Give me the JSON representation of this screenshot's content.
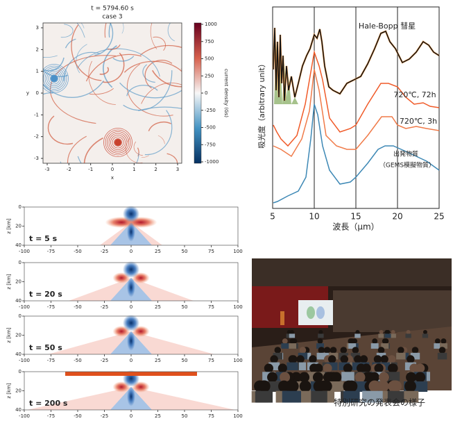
{
  "mhd": {
    "title": "t = 5794.60 s",
    "subtitle": "case 3",
    "xlabel": "x",
    "ylabel": "y",
    "xticks": [
      "-3",
      "-2",
      "-1",
      "0",
      "1",
      "2",
      "3"
    ],
    "yticks": [
      "3",
      "2",
      "1",
      "0",
      "-1",
      "-2",
      "-3"
    ],
    "colorbar_label": "current density (Gs)",
    "colorbar_ticks": [
      "1000",
      "750",
      "500",
      "250",
      "0",
      "-250",
      "-500",
      "-750",
      "-1000"
    ]
  },
  "spectra": {
    "ylabel": "吸光度（arbitrary unit）",
    "xlabel": "波長（μm）",
    "xticks": [
      "5",
      "10",
      "15",
      "20",
      "25"
    ],
    "labels": [
      "Hale-Bopp 彗星",
      "720℃, 72h",
      "720℃, 3h",
      "出発物質",
      "（GEMS模擬物質）"
    ]
  },
  "wave": {
    "ylabel": "z [km]",
    "xticks": [
      "-100",
      "-75",
      "-50",
      "-25",
      "0",
      "25",
      "50",
      "75",
      "100"
    ],
    "yticks": [
      "0",
      "20",
      "40"
    ],
    "panels": [
      "t = 5 s",
      "t = 20 s",
      "t = 50 s",
      "t = 200 s"
    ]
  },
  "photo": {
    "caption": "特別研究の発表会の様子"
  }
}
